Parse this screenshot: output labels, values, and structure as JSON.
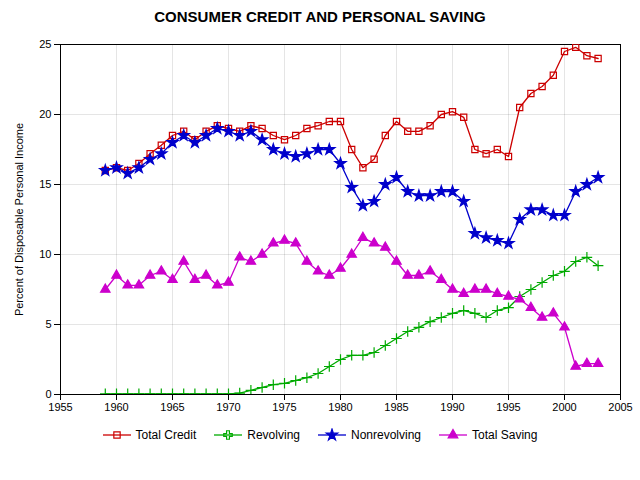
{
  "chart_data": {
    "type": "line",
    "title": "CONSUMER CREDIT AND PERSONAL SAVING",
    "y_label": "Percent of Disposable Personal Income",
    "x": [
      1959,
      1960,
      1961,
      1962,
      1963,
      1964,
      1965,
      1966,
      1967,
      1968,
      1969,
      1970,
      1971,
      1972,
      1973,
      1974,
      1975,
      1976,
      1977,
      1978,
      1979,
      1980,
      1981,
      1982,
      1983,
      1984,
      1985,
      1986,
      1987,
      1988,
      1989,
      1990,
      1991,
      1992,
      1993,
      1994,
      1995,
      1996,
      1997,
      1998,
      1999,
      2000,
      2001,
      2002,
      2003
    ],
    "series": [
      {
        "name": "Total Credit",
        "color": "#cc0000",
        "marker": "square",
        "values": [
          16.0,
          16.2,
          16.0,
          16.5,
          17.2,
          17.8,
          18.5,
          18.8,
          18.2,
          18.8,
          19.2,
          19.0,
          18.8,
          19.2,
          19.0,
          18.5,
          18.2,
          18.5,
          19.0,
          19.2,
          19.5,
          19.5,
          17.5,
          16.2,
          16.8,
          18.5,
          19.5,
          18.8,
          18.8,
          19.2,
          20.0,
          20.2,
          19.8,
          17.5,
          17.2,
          17.5,
          17.0,
          20.5,
          21.5,
          22.0,
          22.8,
          24.5,
          24.8,
          24.2,
          24.0
        ]
      },
      {
        "name": "Revolving",
        "color": "#00aa00",
        "marker": "plus",
        "values": [
          0.05,
          0.05,
          0.05,
          0.05,
          0.05,
          0.05,
          0.05,
          0.05,
          0.05,
          0.05,
          0.05,
          0.05,
          0.1,
          0.3,
          0.5,
          0.7,
          0.8,
          1.0,
          1.2,
          1.5,
          2.0,
          2.5,
          2.8,
          2.8,
          3.0,
          3.5,
          4.0,
          4.5,
          4.8,
          5.2,
          5.5,
          5.8,
          6.0,
          5.8,
          5.5,
          6.0,
          6.2,
          7.0,
          7.5,
          8.0,
          8.5,
          8.8,
          9.5,
          9.8,
          9.2
        ]
      },
      {
        "name": "Nonrevolving",
        "color": "#0000cc",
        "marker": "star",
        "values": [
          16.0,
          16.2,
          15.8,
          16.2,
          16.8,
          17.2,
          18.0,
          18.5,
          18.0,
          18.5,
          19.0,
          18.8,
          18.5,
          18.8,
          18.2,
          17.5,
          17.2,
          17.0,
          17.2,
          17.5,
          17.5,
          16.5,
          14.8,
          13.5,
          13.8,
          15.0,
          15.5,
          14.5,
          14.2,
          14.2,
          14.5,
          14.5,
          13.8,
          11.5,
          11.2,
          11.0,
          10.8,
          12.5,
          13.2,
          13.2,
          12.8,
          12.8,
          14.5,
          15.0,
          15.5
        ]
      },
      {
        "name": "Total Saving",
        "color": "#cc00cc",
        "marker": "triangle",
        "values": [
          7.5,
          8.5,
          7.8,
          7.8,
          8.5,
          8.8,
          8.2,
          9.5,
          8.2,
          8.5,
          7.8,
          8.0,
          9.8,
          9.5,
          10.0,
          10.8,
          11.0,
          10.8,
          9.5,
          8.8,
          8.5,
          9.0,
          10.0,
          11.2,
          10.8,
          10.5,
          9.5,
          8.5,
          8.5,
          8.8,
          8.2,
          7.5,
          7.2,
          7.5,
          7.5,
          7.2,
          7.0,
          6.8,
          6.2,
          5.5,
          5.8,
          4.8,
          2.0,
          2.2,
          2.2
        ]
      }
    ],
    "xlim": [
      1955,
      2005
    ],
    "xticks": [
      1955,
      1960,
      1965,
      1970,
      1975,
      1980,
      1985,
      1990,
      1995,
      2000,
      2005
    ],
    "ylim": [
      0,
      25
    ],
    "yticks": [
      0,
      5,
      10,
      15,
      20,
      25
    ],
    "grid": true,
    "legend": "bottom"
  }
}
